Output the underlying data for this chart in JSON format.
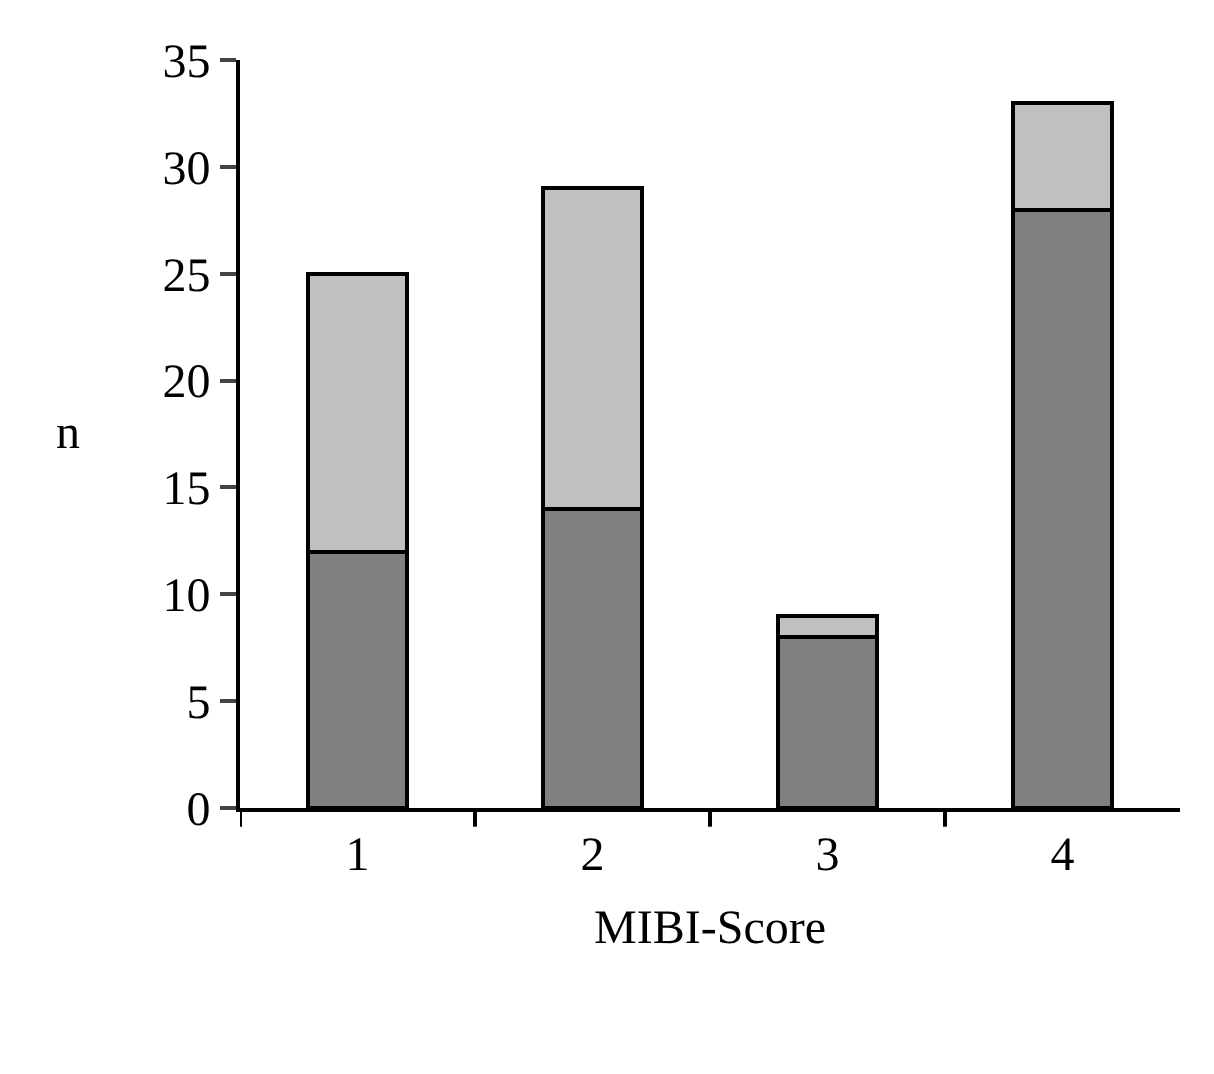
{
  "chart_data": {
    "type": "bar",
    "stacked": true,
    "xlabel": "MIBI-Score",
    "ylabel": "n",
    "categories": [
      "1",
      "2",
      "3",
      "4"
    ],
    "series": [
      {
        "color": "#808080",
        "values": [
          12,
          14,
          8,
          28
        ]
      },
      {
        "color": "#c0c0c0",
        "values": [
          13,
          15,
          1,
          5
        ]
      }
    ],
    "ylim": [
      0,
      35
    ],
    "yticks": [
      0,
      5,
      10,
      15,
      20,
      25,
      30,
      35
    ]
  }
}
